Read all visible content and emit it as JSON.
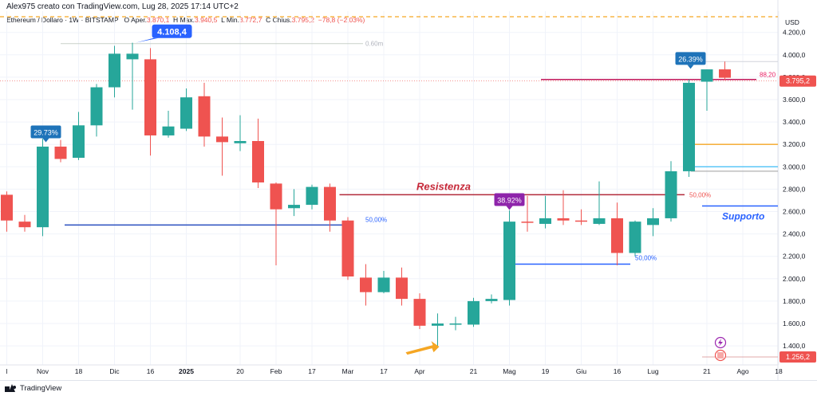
{
  "header": {
    "title": "Alex975 creato con TradingView.com, Lug 28, 2025 17:14 UTC+2"
  },
  "ohlc": {
    "symbol": "Ethereum / Dollaro · 1W · BITSTAMP",
    "open_label": "O",
    "open_prefix": "Aper.",
    "open": "3.870,1",
    "high_label": "H",
    "high_prefix": "Max.",
    "high": "3.940,5",
    "low_label": "L",
    "low_prefix": "Min.",
    "low": "3.772,7",
    "close_label": "C",
    "close_prefix": "Chius.",
    "close": "3.795,2",
    "change": "−78,8 (−2,03%)"
  },
  "footer": {
    "brand": "TradingView"
  },
  "colors": {
    "up": "#26a69a",
    "down": "#ef5350",
    "accent_blue": "#2962ff",
    "purple": "#9c27b0",
    "orange": "#f5a623"
  },
  "chart_data": {
    "type": "candlestick",
    "currency": "USD",
    "y_ticks": [
      1400,
      1600,
      1800,
      2000,
      2200,
      2400,
      2600,
      2800,
      3000,
      3200,
      3400,
      3600,
      3800,
      4000,
      4200
    ],
    "y_tick_labels": [
      "1.400,0",
      "1.600,0",
      "1.800,0",
      "2.000,0",
      "2.200,0",
      "2.400,0",
      "2.600,0",
      "2.800,0",
      "3.000,0",
      "3.200,0",
      "3.400,0",
      "3.600,0",
      "3.800,0",
      "4.000,0",
      "4.200,0"
    ],
    "ylim": [
      1230,
      4390
    ],
    "x_labels": [
      "l",
      "Nov",
      "18",
      "Dic",
      "16",
      "2025",
      "20",
      "Feb",
      "17",
      "Mar",
      "17",
      "Apr",
      "21",
      "Mag",
      "19",
      "Giu",
      "16",
      "Lug",
      "21",
      "Ago",
      "18"
    ],
    "x_label_weeks": [
      "2024-10-21",
      "2024-11-04",
      "2024-11-18",
      "2024-12-02",
      "2024-12-16",
      "2024-12-30",
      "2025-01-20",
      "2025-02-03",
      "2025-02-17",
      "2025-03-03",
      "2025-03-17",
      "2025-03-31",
      "2025-04-21",
      "2025-05-05",
      "2025-05-19",
      "2025-06-02",
      "2025-06-16",
      "2025-06-30",
      "2025-07-21",
      "2025-08-04",
      "2025-08-18"
    ],
    "candles": [
      {
        "week": "2024-10-21",
        "o": 2750,
        "h": 2780,
        "c": 2520,
        "l": 2420
      },
      {
        "week": "2024-10-28",
        "o": 2510,
        "h": 2570,
        "c": 2460,
        "l": 2420
      },
      {
        "week": "2024-11-04",
        "o": 2460,
        "h": 3250,
        "c": 3180,
        "l": 2380
      },
      {
        "week": "2024-11-11",
        "o": 3180,
        "h": 3240,
        "c": 3070,
        "l": 3040
      },
      {
        "week": "2024-11-18",
        "o": 3080,
        "h": 3490,
        "c": 3370,
        "l": 3060
      },
      {
        "week": "2024-11-25",
        "o": 3370,
        "h": 3740,
        "c": 3710,
        "l": 3270
      },
      {
        "week": "2024-12-02",
        "o": 3710,
        "h": 4080,
        "c": 4010,
        "l": 3620
      },
      {
        "week": "2024-12-09",
        "o": 3960,
        "h": 4108,
        "c": 4010,
        "l": 3510
      },
      {
        "week": "2024-12-16",
        "o": 3960,
        "h": 4060,
        "c": 3280,
        "l": 3100
      },
      {
        "week": "2024-12-23",
        "o": 3280,
        "h": 3500,
        "c": 3360,
        "l": 3260
      },
      {
        "week": "2024-12-30",
        "o": 3340,
        "h": 3700,
        "c": 3620,
        "l": 3320
      },
      {
        "week": "2025-01-06",
        "o": 3630,
        "h": 3750,
        "c": 3270,
        "l": 3180
      },
      {
        "week": "2025-01-13",
        "o": 3270,
        "h": 3440,
        "c": 3220,
        "l": 2920
      },
      {
        "week": "2025-01-20",
        "o": 3210,
        "h": 3460,
        "c": 3230,
        "l": 3140
      },
      {
        "week": "2025-01-27",
        "o": 3230,
        "h": 3430,
        "c": 2860,
        "l": 2810
      },
      {
        "week": "2025-02-03",
        "o": 2850,
        "h": 2860,
        "c": 2620,
        "l": 2120
      },
      {
        "week": "2025-02-10",
        "o": 2630,
        "h": 2800,
        "c": 2660,
        "l": 2560
      },
      {
        "week": "2025-02-17",
        "o": 2660,
        "h": 2840,
        "c": 2820,
        "l": 2620
      },
      {
        "week": "2025-02-24",
        "o": 2820,
        "h": 2850,
        "c": 2520,
        "l": 2420
      },
      {
        "week": "2025-03-03",
        "o": 2520,
        "h": 2550,
        "c": 2020,
        "l": 1990
      },
      {
        "week": "2025-03-10",
        "o": 2010,
        "h": 2130,
        "c": 1880,
        "l": 1760
      },
      {
        "week": "2025-03-17",
        "o": 1880,
        "h": 2070,
        "c": 2010,
        "l": 1870
      },
      {
        "week": "2025-03-24",
        "o": 2010,
        "h": 2100,
        "c": 1820,
        "l": 1760
      },
      {
        "week": "2025-03-31",
        "o": 1820,
        "h": 1870,
        "c": 1580,
        "l": 1550
      },
      {
        "week": "2025-04-07",
        "o": 1580,
        "h": 1690,
        "c": 1600,
        "l": 1390
      },
      {
        "week": "2025-04-14",
        "o": 1590,
        "h": 1660,
        "c": 1600,
        "l": 1540
      },
      {
        "week": "2025-04-21",
        "o": 1590,
        "h": 1830,
        "c": 1800,
        "l": 1570
      },
      {
        "week": "2025-04-28",
        "o": 1800,
        "h": 1860,
        "c": 1820,
        "l": 1780
      },
      {
        "week": "2025-05-05",
        "o": 1810,
        "h": 2610,
        "c": 2510,
        "l": 1760
      },
      {
        "week": "2025-05-12",
        "o": 2510,
        "h": 2740,
        "c": 2500,
        "l": 2420
      },
      {
        "week": "2025-05-19",
        "o": 2490,
        "h": 2740,
        "c": 2540,
        "l": 2450
      },
      {
        "week": "2025-05-26",
        "o": 2540,
        "h": 2790,
        "c": 2520,
        "l": 2480
      },
      {
        "week": "2025-06-02",
        "o": 2520,
        "h": 2620,
        "c": 2510,
        "l": 2480
      },
      {
        "week": "2025-06-09",
        "o": 2490,
        "h": 2870,
        "c": 2540,
        "l": 2480
      },
      {
        "week": "2025-06-16",
        "o": 2540,
        "h": 2680,
        "c": 2230,
        "l": 2120
      },
      {
        "week": "2025-06-23",
        "o": 2230,
        "h": 2520,
        "c": 2510,
        "l": 2200
      },
      {
        "week": "2025-06-30",
        "o": 2480,
        "h": 2630,
        "c": 2540,
        "l": 2380
      },
      {
        "week": "2025-07-07",
        "o": 2540,
        "h": 3050,
        "c": 2960,
        "l": 2510
      },
      {
        "week": "2025-07-14",
        "o": 2960,
        "h": 3780,
        "c": 3750,
        "l": 2910
      },
      {
        "week": "2025-07-21",
        "o": 3760,
        "h": 3870,
        "c": 3870,
        "l": 3500
      },
      {
        "week": "2025-07-28",
        "o": 3870,
        "h": 3940,
        "c": 3795,
        "l": 3772
      }
    ],
    "annotations": {
      "resistance_label": "Resistenza",
      "support_label": "Supporto",
      "high_marker": "4.108,4",
      "gain_1": "29.73%",
      "gain_2": "38.92%",
      "gain_3": "26.39%",
      "fib_level_1": "0.60m",
      "fib_level_2": "50,00%",
      "fib_level_3": "50,00%",
      "fib_level_4": "50,00%",
      "fib_level_5": "88,20",
      "price_current": "3.795,2",
      "price_support": "1.256,2"
    },
    "levels": {
      "dashed_top": 4340,
      "resistance": 2750,
      "support": 2650,
      "blue_fib_left": 2480,
      "blue_fib_mid": 2130,
      "pink_level": 3780,
      "orange_level": 3200,
      "lightblue_level": 3000,
      "gray_level": 2960,
      "fib_top_line": 4100,
      "gray_top_right": 3940
    }
  }
}
